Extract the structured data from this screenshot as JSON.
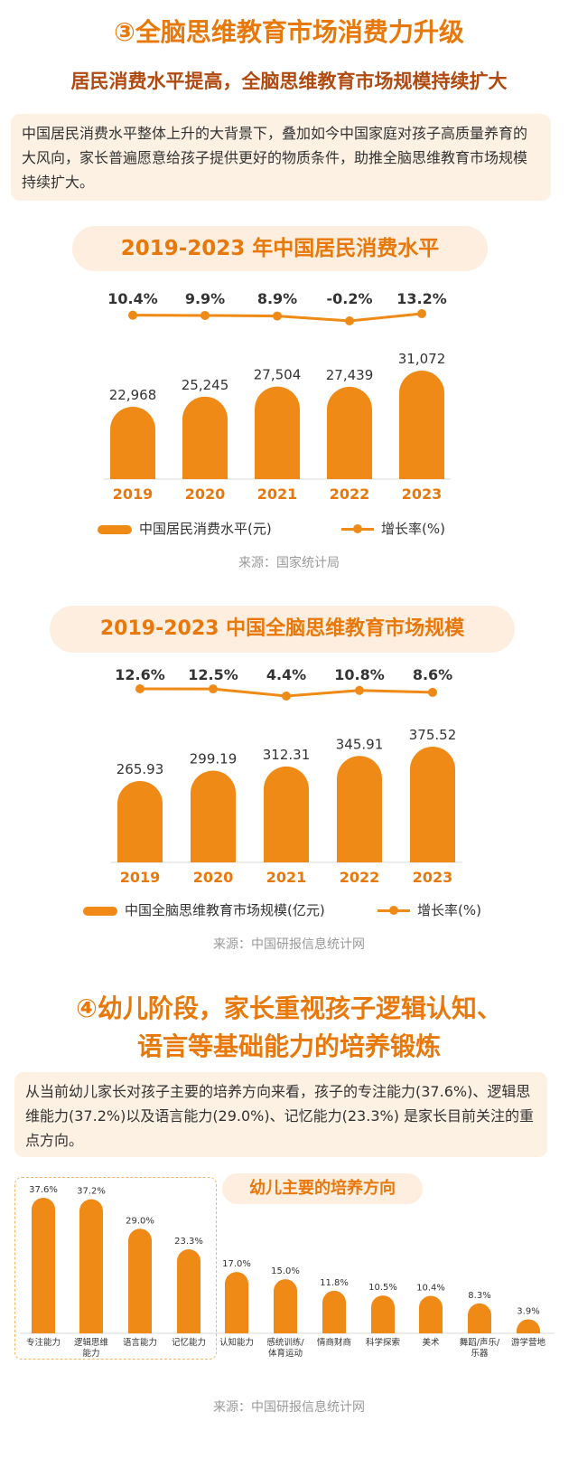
{
  "section3": {
    "title": "③全脑思维教育市场消费力升级",
    "subtitle": "居民消费水平提高，全脑思维教育市场规模持续扩大",
    "description": "中国居民消费水平整体上升的大背景下，叠加如今中国家庭对孩子高质量养育的大风向，家长普遍愿意给孩子提供更好的物质条件，助推全脑思维教育市场规模持续扩大。"
  },
  "section4": {
    "title_line1": "④幼儿阶段，家长重视孩子逻辑认知、",
    "title_line2": "语言等基础能力的培养锻炼",
    "description": "从当前幼儿家长对孩子主要的培养方向来看，孩子的专注能力(37.6%)、逻辑思维能力(37.2%)以及语言能力(29.0%)、记忆能力(23.3%) 是家长目前关注的重点方向。"
  },
  "colors": {
    "accent": "#ef8a17",
    "title": "#e8780a",
    "subtitle": "#b04a10",
    "box_bg": "#fdf1e4"
  },
  "chart_data": [
    {
      "type": "bar",
      "title": "2019-2023 年中国居民消费水平",
      "categories": [
        "2019",
        "2020",
        "2021",
        "2022",
        "2023"
      ],
      "series": [
        {
          "name": "中国居民消费水平(元)",
          "type": "bar",
          "values": [
            22968,
            25245,
            27504,
            27439,
            31072
          ],
          "labels": [
            "22,968",
            "25,245",
            "27,504",
            "27,439",
            "31,072"
          ]
        },
        {
          "name": "增长率(%)",
          "type": "line",
          "values": [
            10.4,
            9.9,
            8.9,
            -0.2,
            13.2
          ],
          "labels": [
            "10.4%",
            "9.9%",
            "8.9%",
            "-0.2%",
            "13.2%"
          ]
        }
      ],
      "legend_bar": "中国居民消费水平(元)",
      "legend_line": "增长率(%)",
      "source": "来源：国家统计局"
    },
    {
      "type": "bar",
      "title": "2019-2023 中国全脑思维教育市场规模",
      "categories": [
        "2019",
        "2020",
        "2021",
        "2022",
        "2023"
      ],
      "series": [
        {
          "name": "中国全脑思维教育市场规模(亿元)",
          "type": "bar",
          "values": [
            265.93,
            299.19,
            312.31,
            345.91,
            375.52
          ],
          "labels": [
            "265.93",
            "299.19",
            "312.31",
            "345.91",
            "375.52"
          ]
        },
        {
          "name": "增长率(%)",
          "type": "line",
          "values": [
            12.6,
            12.5,
            4.4,
            10.8,
            8.6
          ],
          "labels": [
            "12.6%",
            "12.5%",
            "4.4%",
            "10.8%",
            "8.6%"
          ]
        }
      ],
      "legend_bar": "中国全脑思维教育市场规模(亿元)",
      "legend_line": "增长率(%)",
      "source": "来源：中国研报信息统计网"
    },
    {
      "type": "bar",
      "title": "幼儿主要的培养方向",
      "categories": [
        "专注能力",
        "逻辑思维能力",
        "语言能力",
        "记忆能力",
        "认知能力",
        "感统训练/体育运动",
        "情商财商",
        "科学探索",
        "美术",
        "舞蹈/声乐/乐器",
        "游学营地"
      ],
      "category_lines": [
        [
          "专注能力"
        ],
        [
          "逻辑思维",
          "能力"
        ],
        [
          "语言能力"
        ],
        [
          "记忆能力"
        ],
        [
          "认知能力"
        ],
        [
          "感统训练/",
          "体育运动"
        ],
        [
          "情商财商"
        ],
        [
          "科学探索"
        ],
        [
          "美术"
        ],
        [
          "舞蹈/声乐/",
          "乐器"
        ],
        [
          "游学营地"
        ]
      ],
      "values": [
        37.6,
        37.2,
        29.0,
        23.3,
        17.0,
        15.0,
        11.8,
        10.5,
        10.4,
        8.3,
        3.9
      ],
      "labels": [
        "37.6%",
        "37.2%",
        "29.0%",
        "23.3%",
        "17.0%",
        "15.0%",
        "11.8%",
        "10.5%",
        "10.4%",
        "8.3%",
        "3.9%"
      ],
      "source": "来源：中国研报信息统计网"
    }
  ]
}
